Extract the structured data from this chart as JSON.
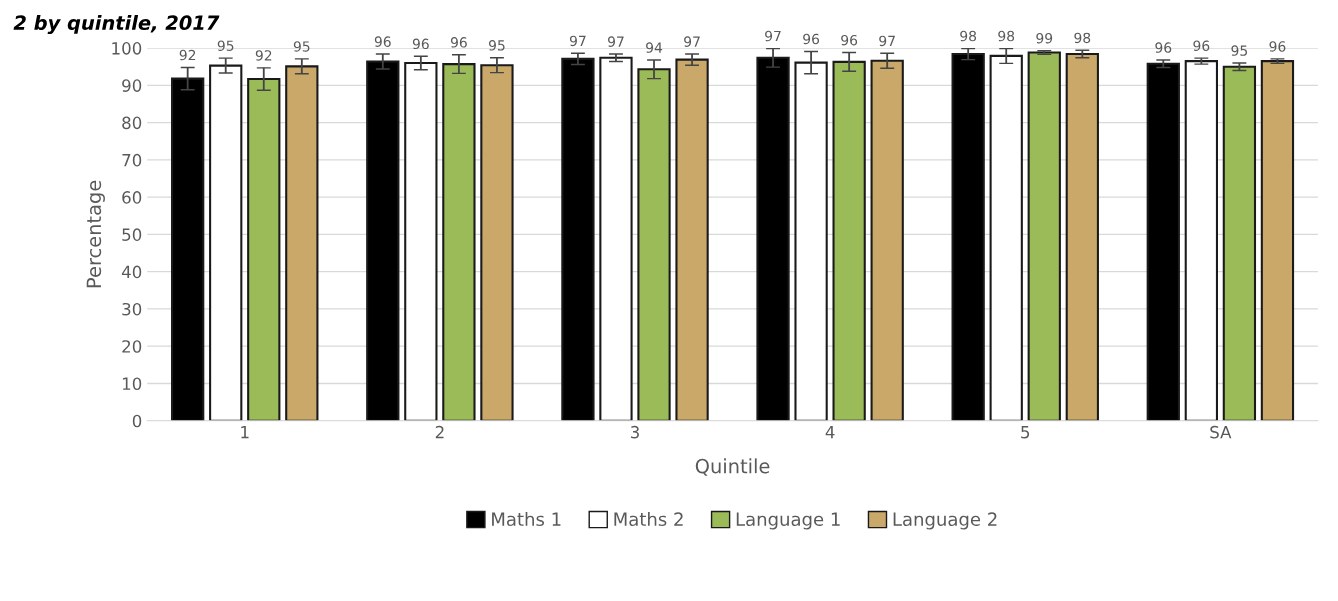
{
  "chart_data": {
    "type": "bar",
    "title": "2 by quintile, 2017",
    "xlabel": "Quintile",
    "ylabel": "Percentage",
    "categories": [
      "1",
      "2",
      "3",
      "4",
      "5",
      "SA"
    ],
    "series": [
      {
        "name": "Maths 1",
        "color": "#000000",
        "values": [
          91.8,
          96.4,
          97.1,
          97.4,
          98.4,
          95.8
        ],
        "errors": [
          3,
          2,
          1.5,
          2.5,
          1.5,
          1
        ],
        "value_labels": [
          "92",
          "96",
          "97",
          "97",
          "98",
          "96"
        ]
      },
      {
        "name": "Maths 2",
        "color": "#ffffff",
        "values": [
          95.3,
          96.0,
          97.4,
          96.1,
          97.9,
          96.5
        ],
        "errors": [
          2,
          1.8,
          1,
          3,
          2,
          0.8
        ],
        "value_labels": [
          "95",
          "96",
          "97",
          "96",
          "98",
          "96"
        ]
      },
      {
        "name": "Language 1",
        "color": "#9bbb59",
        "values": [
          91.7,
          95.7,
          94.3,
          96.3,
          98.8,
          95.0
        ],
        "errors": [
          3,
          2.5,
          2.5,
          2.5,
          0.5,
          1
        ],
        "value_labels": [
          "92",
          "96",
          "94",
          "96",
          "99",
          "95"
        ]
      },
      {
        "name": "Language 2",
        "color": "#c9a86a",
        "values": [
          95.1,
          95.4,
          96.9,
          96.6,
          98.4,
          96.5
        ],
        "errors": [
          2,
          2,
          1.5,
          2,
          1,
          0.6
        ],
        "value_labels": [
          "95",
          "95",
          "97",
          "97",
          "98",
          "96"
        ]
      }
    ],
    "ylim": [
      0,
      100
    ],
    "yticks": [
      0,
      10,
      20,
      30,
      40,
      50,
      60,
      70,
      80,
      90,
      100
    ],
    "grid": "y",
    "legend": "bottom"
  }
}
